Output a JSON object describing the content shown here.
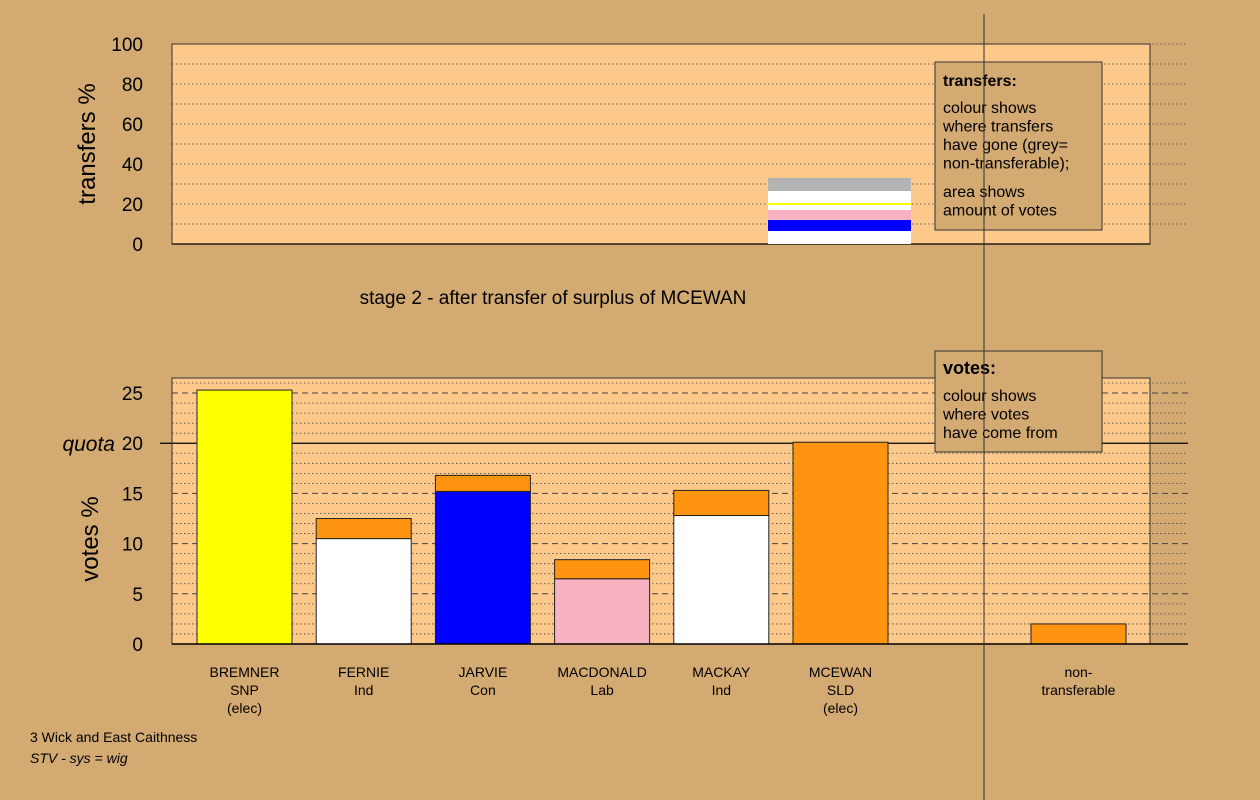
{
  "colors": {
    "background": "#d4aa73",
    "plot_bg": "#fdc98a",
    "SNP": "#ffff00",
    "Ind": "#ffffff",
    "Con": "#0000ff",
    "Lab": "#f9b2c2",
    "SLD": "#ff9410",
    "nontransferable": "#b3b3b3"
  },
  "chart_data": [
    {
      "type": "bar",
      "name": "transfers",
      "ylabel": "transfers %",
      "ylim": [
        0,
        100
      ],
      "yticks": [
        0,
        20,
        40,
        60,
        80,
        100
      ],
      "xlabel": "stage 2 - after transfer of surplus of MCEWAN",
      "stack": [
        {
          "party": "Ind",
          "value": 6.5
        },
        {
          "party": "Con",
          "value": 5.5
        },
        {
          "party": "Lab",
          "value": 5.0
        },
        {
          "party": "Ind",
          "value": 2.5
        },
        {
          "party": "SNP",
          "value": 1.0
        },
        {
          "party": "Ind",
          "value": 6.0
        },
        {
          "party": "nontransferable",
          "value": 6.5
        }
      ],
      "legend": {
        "title": "transfers:",
        "lines1": [
          "colour shows",
          "where transfers",
          "have gone (grey=",
          "non-transferable);"
        ],
        "lines2": [
          "area shows",
          "amount of votes"
        ]
      }
    },
    {
      "type": "bar",
      "name": "votes",
      "ylabel": "votes %",
      "ylim": [
        0,
        26.5
      ],
      "yticks": [
        0,
        5,
        10,
        15,
        20,
        25
      ],
      "quota": 20,
      "quota_label": "quota",
      "categories": [
        {
          "label": [
            "BREMNER",
            "SNP",
            "(elec)"
          ],
          "segments": [
            {
              "party": "SNP",
              "value": 25.3
            }
          ]
        },
        {
          "label": [
            "FERNIE",
            "Ind"
          ],
          "segments": [
            {
              "party": "Ind",
              "value": 10.5
            },
            {
              "party": "SLD",
              "value": 2.0
            }
          ]
        },
        {
          "label": [
            "JARVIE",
            "Con"
          ],
          "segments": [
            {
              "party": "Con",
              "value": 15.2
            },
            {
              "party": "SLD",
              "value": 1.6
            }
          ]
        },
        {
          "label": [
            "MACDONALD",
            "Lab"
          ],
          "segments": [
            {
              "party": "Lab",
              "value": 6.5
            },
            {
              "party": "SLD",
              "value": 1.9
            }
          ]
        },
        {
          "label": [
            "MACKAY",
            "Ind"
          ],
          "segments": [
            {
              "party": "Ind",
              "value": 12.8
            },
            {
              "party": "SLD",
              "value": 2.5
            }
          ]
        },
        {
          "label": [
            "MCEWAN",
            "SLD",
            "(elec)"
          ],
          "segments": [
            {
              "party": "SLD",
              "value": 20.1
            }
          ]
        },
        {
          "label": [
            "non-",
            "transferable"
          ],
          "segments": [
            {
              "party": "SLD",
              "value": 2.0
            }
          ],
          "separate": true
        }
      ],
      "legend": {
        "title": "votes:",
        "lines": [
          "colour shows",
          "where votes",
          "have come from"
        ]
      }
    }
  ],
  "caption": {
    "line1": "3 Wick and East Caithness",
    "line2": "STV - sys = wig"
  }
}
